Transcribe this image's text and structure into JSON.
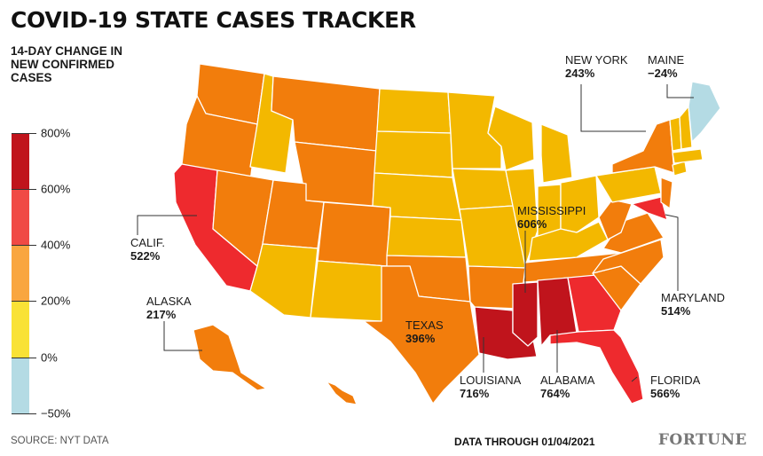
{
  "title": "COVID-19 STATE CASES TRACKER",
  "legend": {
    "title": "14-DAY CHANGE IN NEW CONFIRMED CASES",
    "segments": [
      {
        "from": 600,
        "to": 800,
        "color": "#c0141c"
      },
      {
        "from": 400,
        "to": 600,
        "color": "#f04a45"
      },
      {
        "from": 200,
        "to": 400,
        "color": "#f9a640"
      },
      {
        "from": 0,
        "to": 200,
        "color": "#f9e236"
      },
      {
        "from": -50,
        "to": 0,
        "color": "#b4dbe4"
      }
    ],
    "ticks": [
      "800%",
      "600%",
      "400%",
      "200%",
      "0%",
      "−50%"
    ]
  },
  "callouts": [
    {
      "name": "NEW YORK",
      "value": "243%"
    },
    {
      "name": "MAINE",
      "value": "−24%"
    },
    {
      "name": "CALIF.",
      "value": "522%"
    },
    {
      "name": "MISSISSIPPI",
      "value": "606%"
    },
    {
      "name": "ALASKA",
      "value": "217%"
    },
    {
      "name": "MARYLAND",
      "value": "514%"
    },
    {
      "name": "TEXAS",
      "value": "396%"
    },
    {
      "name": "LOUISIANA",
      "value": "716%"
    },
    {
      "name": "ALABAMA",
      "value": "764%"
    },
    {
      "name": "FLORIDA",
      "value": "566%"
    }
  ],
  "colors": {
    "dark_red": "#c0141c",
    "red": "#ee2a2e",
    "orange": "#f27d0c",
    "gold": "#f3b800",
    "light_blue": "#b4dbe4"
  },
  "footer": {
    "source": "SOURCE: NYT DATA",
    "date": "DATA THROUGH 01/04/2021",
    "brand": "FORTUNE"
  }
}
